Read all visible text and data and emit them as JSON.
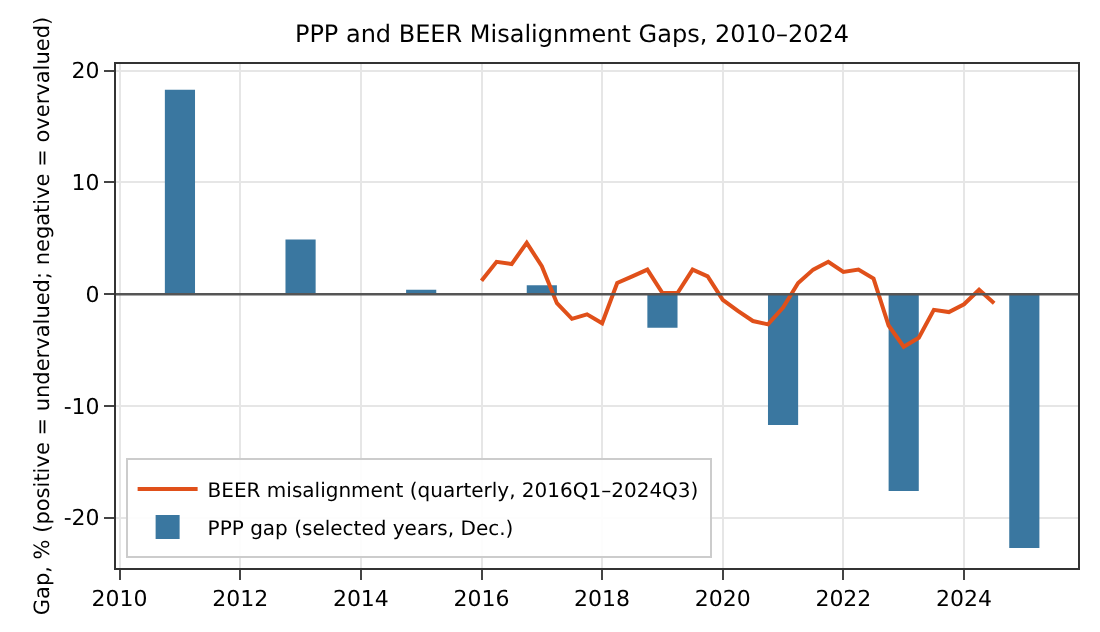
{
  "chart_data": {
    "type": "bar",
    "title": "PPP and BEER Misalignment Gaps, 2010–2024",
    "ylabel": "Gap, % (positive = undervalued; negative = overvalued)",
    "xlim": [
      2009.94,
      2025.89
    ],
    "xticks": [
      2010,
      2012,
      2014,
      2016,
      2018,
      2020,
      2022,
      2024
    ],
    "ylim": [
      -24.5,
      20.6
    ],
    "yticks": [
      -20,
      -10,
      0,
      10,
      20
    ],
    "grid": true,
    "legend": "bottom left",
    "ref_lines": [
      {
        "axis": "y",
        "value": 0,
        "color": "#555555"
      }
    ],
    "series": [
      {
        "name": "BEER misalignment (quarterly, 2016Q1–2024Q3)",
        "type": "line",
        "color": "#e0501a",
        "x": [
          2016,
          2016.25,
          2016.5,
          2016.75,
          2017,
          2017.25,
          2017.5,
          2017.75,
          2018,
          2018.25,
          2018.5,
          2018.75,
          2019,
          2019.25,
          2019.5,
          2019.75,
          2020,
          2020.25,
          2020.5,
          2020.75,
          2021,
          2021.25,
          2021.5,
          2021.75,
          2022,
          2022.25,
          2022.5,
          2022.75,
          2023,
          2023.25,
          2023.5,
          2023.75,
          2024,
          2024.25,
          2024.5
        ],
        "values": [
          1.2,
          2.9,
          2.7,
          4.6,
          2.5,
          -0.8,
          -2.2,
          -1.8,
          -2.6,
          1.0,
          1.6,
          2.2,
          0.1,
          0.1,
          2.2,
          1.6,
          -0.5,
          -1.5,
          -2.4,
          -2.7,
          -1.2,
          1.0,
          2.2,
          2.9,
          2.0,
          2.2,
          1.4,
          -2.8,
          -4.7,
          -3.9,
          -1.4,
          -1.6,
          -0.9,
          0.4,
          -0.8
        ]
      },
      {
        "name": "PPP gap (selected years, Dec.)",
        "color": "#3a77a0",
        "x": [
          2011,
          2013,
          2015,
          2017,
          2019,
          2021,
          2023,
          2025
        ],
        "values": [
          18.3,
          4.9,
          0.4,
          0.8,
          -3.0,
          -11.7,
          -17.6,
          -22.7
        ]
      }
    ]
  }
}
